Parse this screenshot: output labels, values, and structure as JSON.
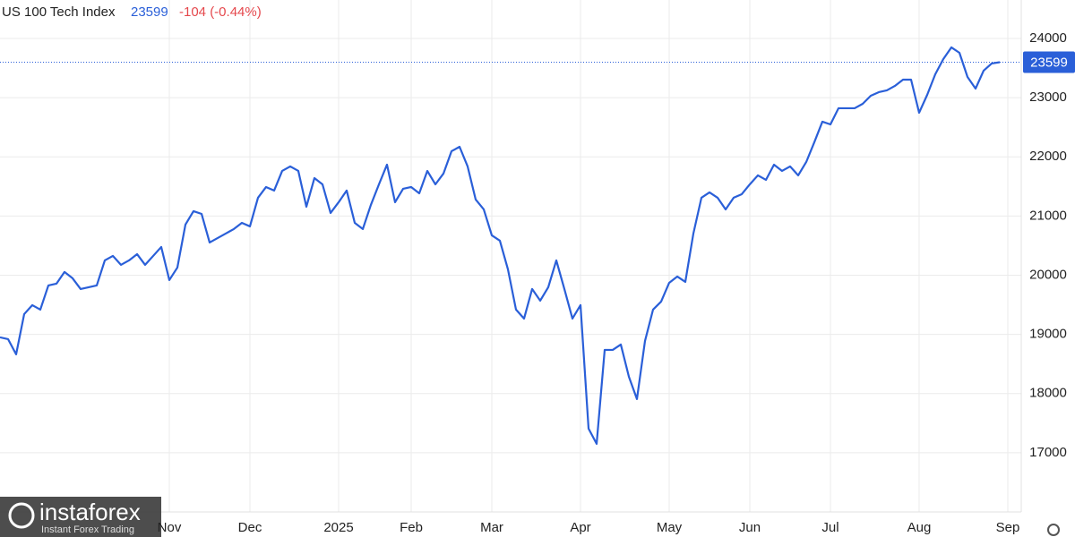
{
  "chart_data": {
    "type": "line",
    "title": "US 100 Tech Index",
    "change_label": "-104 (-0.44%)",
    "watermark": {
      "brand": "instaforex",
      "tagline": "Instant Forex Trading"
    },
    "categories": [
      null,
      null,
      null,
      null,
      null,
      null,
      null,
      null,
      null,
      null,
      null,
      null,
      null,
      null,
      null,
      null,
      null,
      null,
      null,
      null,
      null,
      "Nov",
      null,
      null,
      null,
      null,
      null,
      null,
      null,
      null,
      null,
      "Dec",
      null,
      null,
      null,
      null,
      null,
      null,
      null,
      null,
      null,
      null,
      "2025",
      null,
      null,
      null,
      null,
      null,
      null,
      null,
      null,
      "Feb",
      null,
      null,
      null,
      null,
      null,
      null,
      null,
      null,
      null,
      "Mar",
      null,
      null,
      null,
      null,
      null,
      null,
      null,
      null,
      null,
      null,
      "Apr",
      null,
      null,
      null,
      null,
      null,
      null,
      null,
      null,
      null,
      null,
      "May",
      null,
      null,
      null,
      null,
      null,
      null,
      null,
      null,
      null,
      "Jun",
      null,
      null,
      null,
      null,
      null,
      null,
      null,
      null,
      null,
      "Jul",
      null,
      null,
      null,
      null,
      null,
      null,
      null,
      null,
      null,
      null,
      "Aug",
      null,
      null,
      null,
      null,
      null,
      null,
      null,
      null,
      null,
      null,
      "Sep"
    ],
    "series": [
      {
        "name": "US 100 Tech Index",
        "color": "#2a5fd8",
        "values": [
          18950,
          18920,
          18663,
          19343,
          19494,
          19419,
          19827,
          19857,
          20054,
          19948,
          19766,
          19797,
          19827,
          20250,
          20326,
          20175,
          20250,
          20356,
          20175,
          20326,
          20477,
          19918,
          20129,
          20855,
          21082,
          21036,
          20553,
          20628,
          20704,
          20780,
          20885,
          20825,
          21309,
          21490,
          21430,
          21762,
          21838,
          21762,
          21157,
          21641,
          21535,
          21052,
          21233,
          21430,
          20885,
          20780,
          21188,
          21535,
          21868,
          21233,
          21460,
          21490,
          21384,
          21762,
          21535,
          21717,
          22095,
          22170,
          21838,
          21278,
          21112,
          20674,
          20583,
          20099,
          19419,
          19267,
          19767,
          19570,
          19797,
          20250,
          19767,
          19267,
          19494,
          17408,
          17151,
          18738,
          18738,
          18829,
          18285,
          17907,
          18889,
          19419,
          19555,
          19872,
          19978,
          19887,
          20704,
          21309,
          21399,
          21309,
          21112,
          21309,
          21369,
          21535,
          21687,
          21611,
          21868,
          21762,
          21838,
          21687,
          21913,
          22246,
          22594,
          22548,
          22821,
          22821,
          22821,
          22896,
          23032,
          23093,
          23123,
          23199,
          23304,
          23304,
          22745,
          23047,
          23395,
          23652,
          23849,
          23758,
          23350,
          23153,
          23456,
          23577,
          23599,
          null
        ]
      }
    ],
    "ylim": [
      16000,
      24650
    ],
    "yticks": [
      17000,
      18000,
      19000,
      20000,
      21000,
      22000,
      23000,
      24000
    ],
    "grid": true
  }
}
